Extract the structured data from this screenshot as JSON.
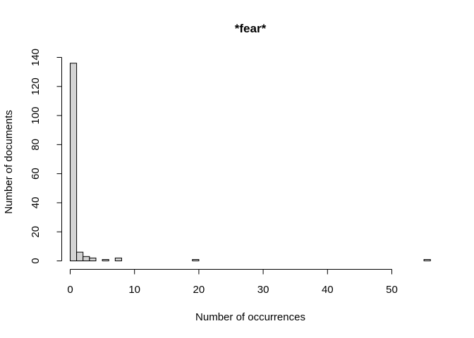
{
  "chart_data": {
    "type": "bar",
    "title": "*fear*",
    "xlabel": "Number of occurrences",
    "ylabel": "Number of documents",
    "bin_width": 1,
    "x_range": [
      0,
      56
    ],
    "ylim": [
      0,
      140
    ],
    "x_ticks": [
      0,
      10,
      20,
      30,
      40,
      50
    ],
    "y_ticks": [
      0,
      20,
      40,
      60,
      80,
      100,
      120,
      140
    ],
    "grid": false,
    "bar_fill": "#d3d3d3",
    "bar_stroke": "#000000",
    "values": [
      136,
      6,
      3,
      2,
      0,
      1,
      0,
      2,
      0,
      0,
      0,
      0,
      0,
      0,
      0,
      0,
      0,
      0,
      0,
      1,
      0,
      0,
      0,
      0,
      0,
      0,
      0,
      0,
      0,
      0,
      0,
      0,
      0,
      0,
      0,
      0,
      0,
      0,
      0,
      0,
      0,
      0,
      0,
      0,
      0,
      0,
      0,
      0,
      0,
      0,
      0,
      0,
      0,
      0,
      0,
      1
    ]
  }
}
